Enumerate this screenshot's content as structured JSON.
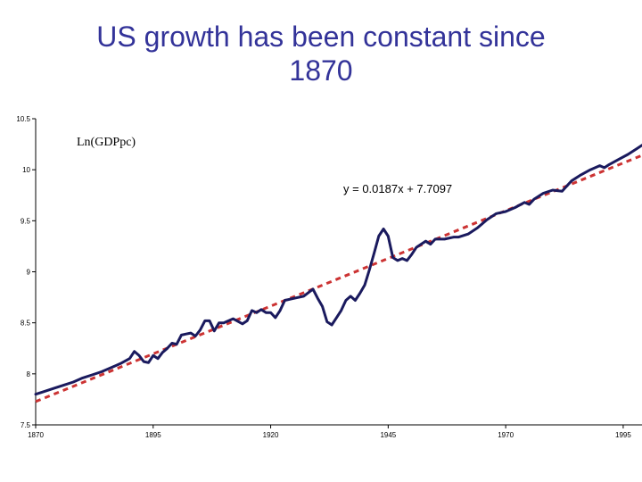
{
  "slide": {
    "title_line1": "US growth has been constant since",
    "title_line2": "1870"
  },
  "chart_data": {
    "type": "line",
    "title": "US growth has been constant since 1870",
    "ylabel": "Ln(GDPpc)",
    "xlabel": "",
    "xlim": [
      1870,
      1999
    ],
    "ylim": [
      7.5,
      10.5
    ],
    "x_ticks": [
      "1870",
      "1895",
      "1920",
      "1945",
      "1970",
      "1995"
    ],
    "y_ticks": [
      "7.5",
      "8",
      "8.5",
      "9",
      "9.5",
      "10",
      "10.5"
    ],
    "grid": false,
    "legend": "none",
    "colors": {
      "series": "#1a1a5e",
      "trend": "#cc3333"
    },
    "trendline": {
      "label": "y = 0.0187x + 7.7097",
      "slope": 0.0187,
      "intercept": 7.7097,
      "x_origin": 1869,
      "style": "dashed"
    },
    "series": [
      {
        "name": "Ln(GDPpc)",
        "x": [
          1870,
          1872,
          1874,
          1876,
          1878,
          1880,
          1882,
          1884,
          1886,
          1888,
          1890,
          1891,
          1892,
          1893,
          1894,
          1895,
          1896,
          1897,
          1898,
          1899,
          1900,
          1901,
          1902,
          1903,
          1904,
          1905,
          1906,
          1907,
          1908,
          1909,
          1910,
          1912,
          1914,
          1915,
          1916,
          1917,
          1918,
          1919,
          1920,
          1921,
          1922,
          1923,
          1925,
          1927,
          1929,
          1930,
          1931,
          1932,
          1933,
          1934,
          1935,
          1936,
          1937,
          1938,
          1939,
          1940,
          1941,
          1942,
          1943,
          1944,
          1945,
          1946,
          1947,
          1948,
          1949,
          1950,
          1951,
          1952,
          1953,
          1954,
          1955,
          1957,
          1959,
          1960,
          1962,
          1964,
          1966,
          1968,
          1970,
          1972,
          1974,
          1975,
          1976,
          1978,
          1980,
          1982,
          1984,
          1986,
          1988,
          1990,
          1991,
          1992,
          1994,
          1996,
          1998,
          1999
        ],
        "y": [
          7.8,
          7.83,
          7.86,
          7.89,
          7.92,
          7.96,
          7.99,
          8.02,
          8.06,
          8.1,
          8.15,
          8.22,
          8.18,
          8.12,
          8.11,
          8.18,
          8.15,
          8.21,
          8.25,
          8.3,
          8.29,
          8.38,
          8.39,
          8.4,
          8.37,
          8.43,
          8.52,
          8.52,
          8.42,
          8.5,
          8.5,
          8.54,
          8.49,
          8.52,
          8.62,
          8.6,
          8.63,
          8.6,
          8.6,
          8.55,
          8.62,
          8.72,
          8.74,
          8.76,
          8.83,
          8.74,
          8.66,
          8.51,
          8.48,
          8.55,
          8.62,
          8.72,
          8.76,
          8.72,
          8.79,
          8.87,
          9.02,
          9.18,
          9.35,
          9.42,
          9.35,
          9.14,
          9.11,
          9.13,
          9.11,
          9.17,
          9.24,
          9.27,
          9.3,
          9.27,
          9.32,
          9.32,
          9.34,
          9.34,
          9.37,
          9.43,
          9.51,
          9.57,
          9.59,
          9.63,
          9.68,
          9.66,
          9.71,
          9.77,
          9.8,
          9.79,
          9.89,
          9.95,
          10.0,
          10.04,
          10.02,
          10.05,
          10.1,
          10.15,
          10.21,
          10.24
        ]
      }
    ]
  }
}
